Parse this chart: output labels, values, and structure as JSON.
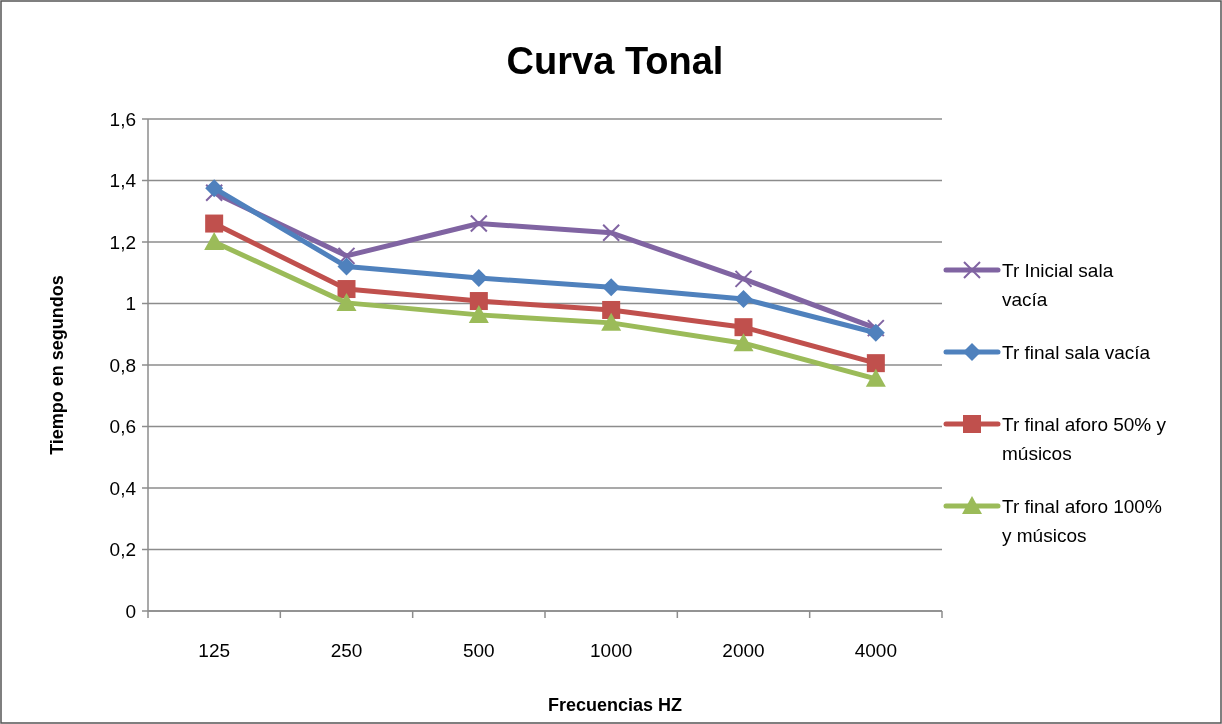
{
  "chart_data": {
    "type": "line",
    "title": "Curva Tonal",
    "xlabel": "Frecuencias HZ",
    "ylabel": "Tiempo en segundos",
    "categories": [
      "125",
      "250",
      "500",
      "1000",
      "2000",
      "4000"
    ],
    "ylim": [
      0,
      1.6
    ],
    "yticks": [
      {
        "value": 0,
        "label": "0"
      },
      {
        "value": 0.2,
        "label": "0,2"
      },
      {
        "value": 0.4,
        "label": "0,4"
      },
      {
        "value": 0.6,
        "label": "0,6"
      },
      {
        "value": 0.8,
        "label": "0,8"
      },
      {
        "value": 1,
        "label": "1"
      },
      {
        "value": 1.2,
        "label": "1,2"
      },
      {
        "value": 1.4,
        "label": "1,4"
      },
      {
        "value": 1.6,
        "label": "1,6"
      }
    ],
    "grid": "y",
    "legend": "right",
    "line_style": "solid",
    "series": [
      {
        "name": "Tr Inicial sala vacía",
        "color": "#8064a2",
        "marker": "cross",
        "values": [
          1.36,
          1.155,
          1.26,
          1.23,
          1.08,
          0.92
        ]
      },
      {
        "name": "Tr final sala vacía",
        "color": "#4f81bd",
        "marker": "diamond",
        "values": [
          1.375,
          1.12,
          1.083,
          1.053,
          1.015,
          0.905
        ]
      },
      {
        "name": "Tr final aforo 50% y músicos",
        "color": "#c0504d",
        "marker": "square",
        "values": [
          1.26,
          1.047,
          1.008,
          0.979,
          0.923,
          0.806
        ]
      },
      {
        "name": "Tr final aforo 100% y músicos",
        "color": "#9bbb59",
        "marker": "triangle",
        "values": [
          1.2,
          1.002,
          0.963,
          0.937,
          0.871,
          0.755
        ]
      }
    ]
  }
}
